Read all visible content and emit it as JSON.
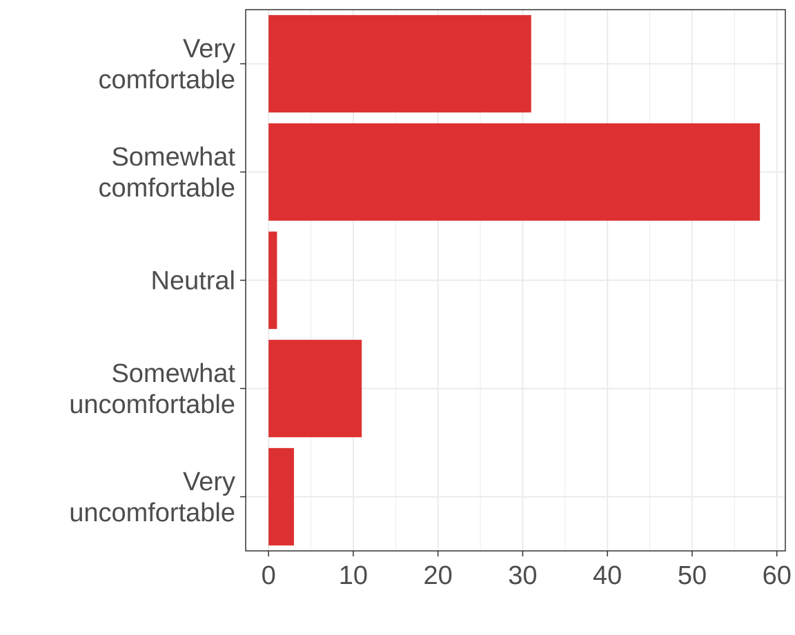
{
  "colors": {
    "bar": "#dd3131",
    "grid": "#ebebeb",
    "axis": "#333333",
    "text": "#4d4d4d"
  },
  "chart_data": {
    "type": "bar",
    "orientation": "horizontal",
    "categories": [
      [
        "Very",
        "comfortable"
      ],
      [
        "Somewhat",
        "comfortable"
      ],
      [
        "Neutral"
      ],
      [
        "Somewhat",
        "uncomfortable"
      ],
      [
        "Very",
        "uncomfortable"
      ]
    ],
    "values": [
      31,
      58,
      1,
      11,
      3
    ],
    "xlim": [
      -2.7,
      61
    ],
    "xticks": [
      0,
      10,
      20,
      30,
      40,
      50,
      60
    ],
    "title": "",
    "xlabel": "",
    "ylabel": "",
    "grid": true
  }
}
